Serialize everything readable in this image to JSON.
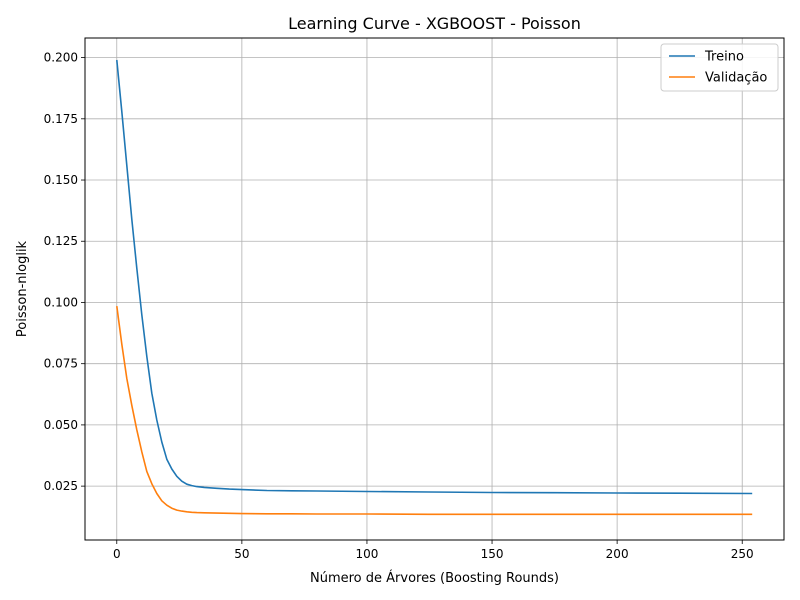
{
  "chart_data": {
    "type": "line",
    "title": "Learning Curve - XGBOOST - Poisson",
    "xlabel": "Número de Árvores (Boosting Rounds)",
    "ylabel": "Poisson-nloglik",
    "xlim": [
      -12.7,
      266.7
    ],
    "ylim": [
      0.003,
      0.208
    ],
    "xticks": [
      0,
      50,
      100,
      150,
      200,
      250
    ],
    "xtick_labels": [
      "0",
      "50",
      "100",
      "150",
      "200",
      "250"
    ],
    "yticks": [
      0.025,
      0.05,
      0.075,
      0.1,
      0.125,
      0.15,
      0.175,
      0.2
    ],
    "ytick_labels": [
      "0.025",
      "0.050",
      "0.075",
      "0.100",
      "0.125",
      "0.150",
      "0.175",
      "0.200"
    ],
    "grid": true,
    "legend_position": "top-right",
    "series": [
      {
        "name": "Treino",
        "color": "#1f77b4",
        "x": [
          0,
          2,
          4,
          6,
          8,
          10,
          12,
          14,
          16,
          18,
          20,
          22,
          24,
          26,
          28,
          30,
          32,
          35,
          40,
          45,
          50,
          60,
          70,
          80,
          100,
          125,
          150,
          175,
          200,
          225,
          254
        ],
        "values": [
          0.199,
          0.178,
          0.156,
          0.134,
          0.114,
          0.095,
          0.078,
          0.063,
          0.052,
          0.043,
          0.036,
          0.032,
          0.029,
          0.027,
          0.0258,
          0.0252,
          0.0248,
          0.0245,
          0.0241,
          0.0238,
          0.0236,
          0.0232,
          0.0231,
          0.023,
          0.0228,
          0.0226,
          0.0224,
          0.0223,
          0.0222,
          0.0221,
          0.022
        ]
      },
      {
        "name": "Validação",
        "color": "#ff7f0e",
        "x": [
          0,
          2,
          4,
          6,
          8,
          10,
          12,
          14,
          16,
          18,
          20,
          22,
          24,
          26,
          28,
          30,
          32,
          35,
          40,
          45,
          50,
          60,
          70,
          80,
          100,
          125,
          150,
          175,
          200,
          225,
          254
        ],
        "values": [
          0.0985,
          0.083,
          0.069,
          0.058,
          0.048,
          0.039,
          0.031,
          0.026,
          0.022,
          0.019,
          0.0172,
          0.016,
          0.0152,
          0.0148,
          0.0145,
          0.0143,
          0.0142,
          0.0141,
          0.014,
          0.0139,
          0.0138,
          0.0137,
          0.0137,
          0.0136,
          0.0136,
          0.0135,
          0.0135,
          0.0135,
          0.0135,
          0.0135,
          0.0135
        ]
      }
    ]
  }
}
